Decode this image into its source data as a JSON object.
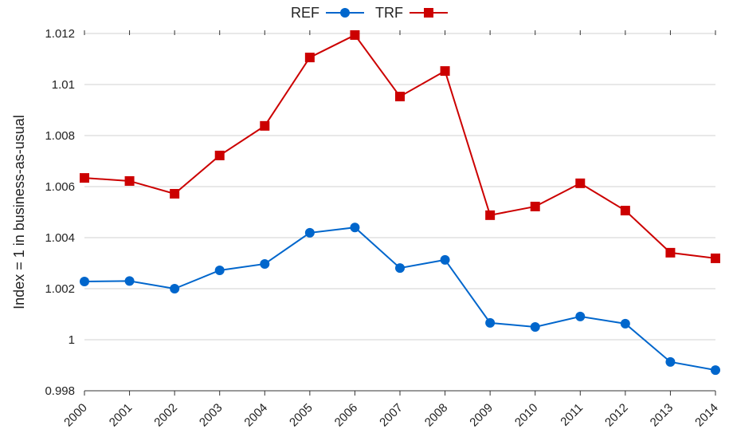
{
  "chart_data": {
    "type": "line",
    "y_label": "Index = 1 in business-as-usual",
    "categories": [
      "2000",
      "2001",
      "2002",
      "2003",
      "2004",
      "2005",
      "2006",
      "2007",
      "2008",
      "2009",
      "2010",
      "2011",
      "2012",
      "2013",
      "2014"
    ],
    "series": [
      {
        "name": "REF",
        "color": "#0066cc",
        "marker": "circle",
        "values": [
          1.00228,
          1.0023,
          1.002,
          1.00272,
          1.00297,
          1.00419,
          1.0044,
          1.00281,
          1.00313,
          1.00066,
          1.0005,
          1.00091,
          1.00063,
          0.99913,
          0.99881
        ]
      },
      {
        "name": "TRF",
        "color": "#cc0000",
        "marker": "square",
        "values": [
          1.00634,
          1.00622,
          1.00572,
          1.00722,
          1.00838,
          1.01106,
          1.01194,
          1.00953,
          1.01053,
          1.00488,
          1.00522,
          1.00613,
          1.00506,
          1.00341,
          1.00319
        ]
      }
    ],
    "ylim": [
      0.998,
      1.012
    ],
    "yticks": [
      0.998,
      1,
      1.002,
      1.004,
      1.006,
      1.008,
      1.01,
      1.012
    ],
    "grid": true,
    "legend": "top"
  }
}
